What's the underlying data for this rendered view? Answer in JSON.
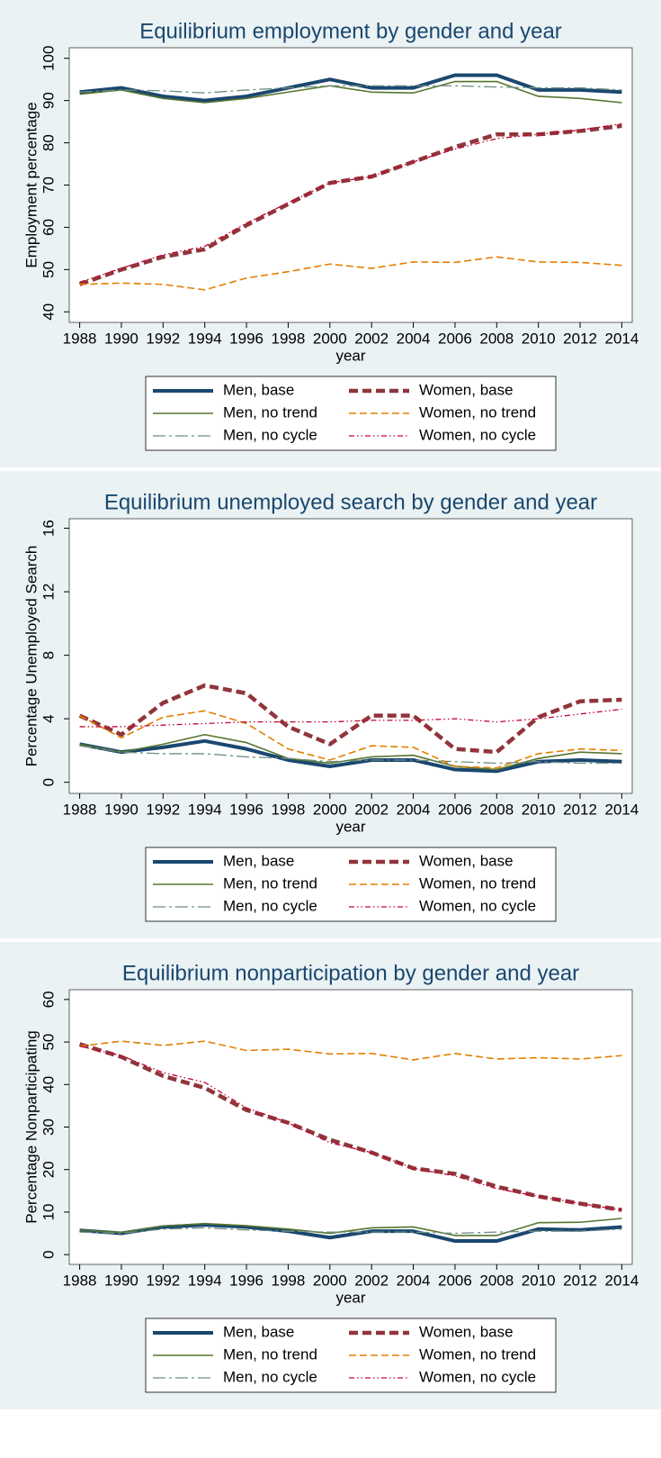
{
  "chart_data": [
    {
      "type": "line",
      "title": "Equilibrium employment by gender and year",
      "y_label": "Employment percentage",
      "x_label": "year",
      "x": [
        1988,
        1990,
        1992,
        1994,
        1996,
        1998,
        2000,
        2002,
        2004,
        2006,
        2008,
        2010,
        2012,
        2014
      ],
      "xlim": [
        1987.5,
        2014.5
      ],
      "xticks": [
        1988,
        1990,
        1992,
        1994,
        1996,
        1998,
        2000,
        2002,
        2004,
        2006,
        2008,
        2010,
        2012,
        2014
      ],
      "ylim": [
        37.5,
        102.5
      ],
      "yticks": [
        40,
        50,
        60,
        70,
        80,
        90,
        100
      ],
      "grid": false,
      "series": [
        {
          "name": "Men, base",
          "color": "#1a476f",
          "values": [
            92,
            93,
            91,
            90,
            91,
            93,
            95,
            93,
            93,
            96,
            96,
            92.5,
            92.5,
            92
          ]
        },
        {
          "name": "Men, no trend",
          "color": "#55752f",
          "values": [
            91.5,
            92.5,
            90.5,
            89.5,
            90.5,
            92,
            93.5,
            92,
            91.8,
            94.5,
            94.5,
            91,
            90.5,
            89.5
          ]
        },
        {
          "name": "Men, no cycle",
          "color": "#6e8e84",
          "values": [
            92,
            92.5,
            92.3,
            91.8,
            92.5,
            93,
            93.5,
            93.5,
            93.5,
            93.5,
            93.2,
            93,
            93,
            92.5
          ]
        },
        {
          "name": "Women, base",
          "color": "#90353b",
          "values": [
            46.5,
            50,
            53,
            54.8,
            60.5,
            65.5,
            70.5,
            72,
            75.5,
            79,
            82,
            82,
            82.8,
            84
          ]
        },
        {
          "name": "Women, no trend",
          "color": "#e37e00",
          "values": [
            46.5,
            46.8,
            46.5,
            45.2,
            48,
            49.5,
            51.3,
            50.3,
            51.8,
            51.7,
            53,
            51.8,
            51.7,
            51
          ]
        },
        {
          "name": "Women, no cycle",
          "color": "#c10534",
          "values": [
            47,
            50.3,
            53.5,
            55.5,
            61,
            65.8,
            70.5,
            72,
            75.5,
            78.5,
            81,
            82,
            83,
            84.5
          ]
        }
      ]
    },
    {
      "type": "line",
      "title": "Equilibrium unemployed search by gender and year",
      "y_label": "Percentage Unemployed Search",
      "x_label": "year",
      "x": [
        1988,
        1990,
        1992,
        1994,
        1996,
        1998,
        2000,
        2002,
        2004,
        2006,
        2008,
        2010,
        2012,
        2014
      ],
      "xlim": [
        1987.5,
        2014.5
      ],
      "xticks": [
        1988,
        1990,
        1992,
        1994,
        1996,
        1998,
        2000,
        2002,
        2004,
        2006,
        2008,
        2010,
        2012,
        2014
      ],
      "ylim": [
        -0.7,
        16.6
      ],
      "yticks": [
        0,
        4,
        8,
        12,
        16
      ],
      "grid": false,
      "series": [
        {
          "name": "Men, base",
          "color": "#1a476f",
          "values": [
            2.4,
            1.9,
            2.2,
            2.6,
            2.1,
            1.4,
            1.0,
            1.4,
            1.4,
            0.8,
            0.7,
            1.3,
            1.4,
            1.3
          ]
        },
        {
          "name": "Men, no trend",
          "color": "#55752f",
          "values": [
            2.4,
            1.9,
            2.4,
            3.0,
            2.5,
            1.5,
            1.2,
            1.6,
            1.7,
            1.0,
            0.8,
            1.5,
            1.9,
            1.8
          ]
        },
        {
          "name": "Men, no cycle",
          "color": "#6e8e84",
          "values": [
            2.3,
            1.9,
            1.8,
            1.8,
            1.6,
            1.5,
            1.3,
            1.4,
            1.4,
            1.3,
            1.2,
            1.3,
            1.2,
            1.2
          ]
        },
        {
          "name": "Women, base",
          "color": "#90353b",
          "values": [
            4.2,
            3.0,
            5.0,
            6.1,
            5.6,
            3.5,
            2.4,
            4.2,
            4.2,
            2.1,
            1.9,
            4.1,
            5.1,
            5.2
          ]
        },
        {
          "name": "Women, no trend",
          "color": "#e37e00",
          "values": [
            4.2,
            2.8,
            4.1,
            4.5,
            3.7,
            2.1,
            1.4,
            2.3,
            2.2,
            1.0,
            0.9,
            1.8,
            2.1,
            2.0
          ]
        },
        {
          "name": "Women, no cycle",
          "color": "#c10534",
          "values": [
            3.5,
            3.5,
            3.6,
            3.7,
            3.8,
            3.8,
            3.8,
            3.9,
            3.9,
            4.0,
            3.8,
            4.0,
            4.3,
            4.6
          ]
        }
      ]
    },
    {
      "type": "line",
      "title": "Equilibrium nonparticipation by gender and year",
      "y_label": "Percentage Nonparticipating",
      "x_label": "year",
      "x": [
        1988,
        1990,
        1992,
        1994,
        1996,
        1998,
        2000,
        2002,
        2004,
        2006,
        2008,
        2010,
        2012,
        2014
      ],
      "xlim": [
        1987.5,
        2014.5
      ],
      "xticks": [
        1988,
        1990,
        1992,
        1994,
        1996,
        1998,
        2000,
        2002,
        2004,
        2006,
        2008,
        2010,
        2012,
        2014
      ],
      "ylim": [
        -2.3,
        62.3
      ],
      "yticks": [
        0,
        10,
        20,
        30,
        40,
        50,
        60
      ],
      "grid": false,
      "series": [
        {
          "name": "Men, base",
          "color": "#1a476f",
          "values": [
            5.7,
            5.0,
            6.5,
            7.0,
            6.5,
            5.5,
            4.0,
            5.5,
            5.5,
            3.2,
            3.2,
            6.0,
            5.8,
            6.5
          ]
        },
        {
          "name": "Men, no trend",
          "color": "#55752f",
          "values": [
            5.8,
            5.2,
            6.7,
            7.3,
            6.8,
            6.0,
            5.0,
            6.3,
            6.5,
            4.5,
            4.5,
            7.5,
            7.6,
            8.5
          ]
        },
        {
          "name": "Men, no cycle",
          "color": "#6e8e84",
          "values": [
            5.3,
            5.0,
            6.0,
            6.3,
            5.8,
            5.5,
            5.3,
            5.3,
            5.3,
            5.0,
            5.3,
            5.5,
            5.5,
            6.0
          ]
        },
        {
          "name": "Women, base",
          "color": "#90353b",
          "values": [
            49.5,
            46.5,
            42,
            39.2,
            34,
            31,
            27,
            24,
            20.3,
            19,
            16,
            13.7,
            12,
            10.5
          ]
        },
        {
          "name": "Women, no trend",
          "color": "#e37e00",
          "values": [
            49,
            50.2,
            49.2,
            50.2,
            48,
            48.3,
            47.2,
            47.3,
            45.8,
            47.3,
            46,
            46.3,
            46,
            46.8
          ]
        },
        {
          "name": "Women, no cycle",
          "color": "#c10534",
          "values": [
            49,
            46.8,
            42.8,
            40.5,
            34.5,
            31,
            26.3,
            24,
            20.3,
            18.5,
            15.5,
            13.7,
            12,
            10.5
          ]
        }
      ]
    }
  ]
}
